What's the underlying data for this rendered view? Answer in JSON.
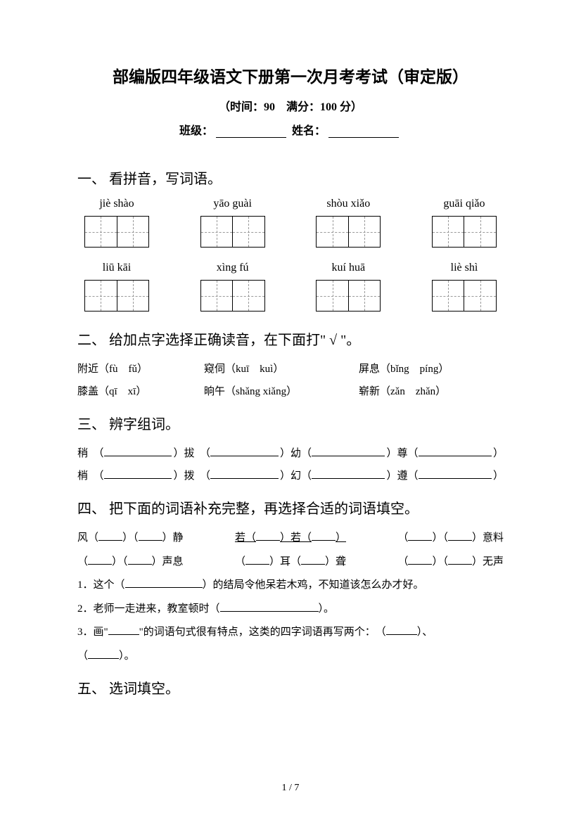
{
  "header": {
    "title": "部编版四年级语文下册第一次月考考试（审定版）",
    "subtitle": "（时间：90　满分：100 分）",
    "class_label": "班级：",
    "name_label": "姓名："
  },
  "q1": {
    "heading": "一、 看拼音，写词语。",
    "row1": [
      "jiè shào",
      "yāo guài",
      "shòu xiǎo",
      "guāi qiǎo"
    ],
    "row2": [
      "liū kāi",
      "xìng fú",
      "kuí huā",
      "liè shì"
    ]
  },
  "q2": {
    "heading": "二、 给加点字选择正确读音，在下面打\" √ \"。",
    "rows": [
      [
        "附近（fù　fǔ）",
        "窥伺（kuī　kuì）",
        "屏息（bǐng　píng）"
      ],
      [
        "膝盖（qī　xī）",
        "晌午（shǎng xiǎng）",
        "崭新（zǎn　zhǎn）"
      ]
    ]
  },
  "q3": {
    "heading": "三、 辨字组词。",
    "rows": [
      [
        "稍",
        "拔",
        "幼",
        "尊"
      ],
      [
        "梢",
        "拨",
        "幻",
        "遵"
      ]
    ]
  },
  "q4": {
    "heading": "四、 把下面的词语补充完整，再选择合适的词语填空。",
    "line1_a": "风（",
    "line1_b": "）（",
    "line1_c": "）静",
    "line1_d": "若（",
    "line1_e": "）若（",
    "line1_f": "）",
    "line1_g": "（",
    "line1_h": "）（",
    "line1_i": "）意料",
    "line2_a": "（",
    "line2_b": "）（",
    "line2_c": "）声息",
    "line2_d": "（",
    "line2_e": "）耳（",
    "line2_f": "）聋",
    "line2_g": "（",
    "line2_h": "）（",
    "line2_i": "）无声",
    "s1": "1．这个（",
    "s1_end": "）的结局令他呆若木鸡，不知道该怎么办才好。",
    "s2": "2．老师一走进来，教室顿时（",
    "s2_end": "）。",
    "s3_a": "3．画\"",
    "s3_b": "\"的词语句式很有特点，这类的四字词语再写两个：　（",
    "s3_c": "）、",
    "s3_d": "（",
    "s3_e": "）。"
  },
  "q5": {
    "heading": "五、 选词填空。"
  },
  "footer": {
    "page": "1 / 7"
  }
}
